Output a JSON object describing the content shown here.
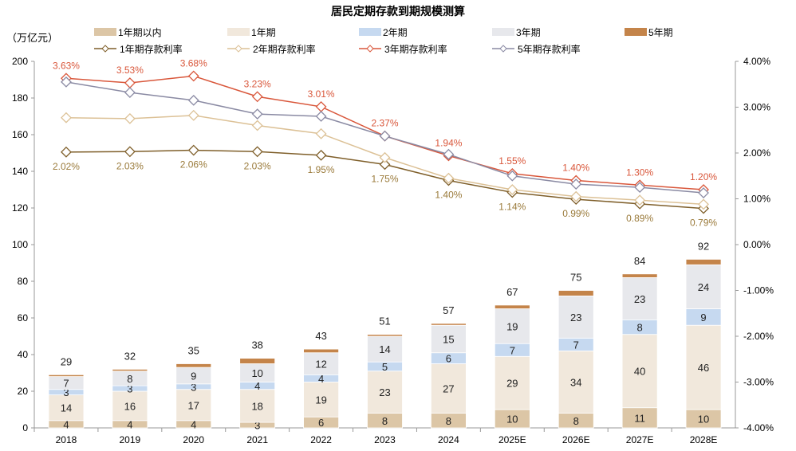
{
  "chart_data": {
    "type": "bar+line",
    "title": "居民定期存款到期规模测算",
    "ylabel_left": "（万亿元）",
    "categories": [
      "2018",
      "2019",
      "2020",
      "2021",
      "2022",
      "2023",
      "2024",
      "2025E",
      "2026E",
      "2027E",
      "2028E"
    ],
    "ylim_left": [
      0,
      200
    ],
    "yticks_left": [
      "0",
      "20",
      "40",
      "60",
      "80",
      "100",
      "120",
      "140",
      "160",
      "180",
      "200"
    ],
    "ylim_right": [
      -4,
      4
    ],
    "yticks_right": [
      "-4.00%",
      "-3.00%",
      "-2.00%",
      "-1.00%",
      "0.00%",
      "1.00%",
      "2.00%",
      "3.00%",
      "4.00%"
    ],
    "legend_position": "top",
    "bar_series": [
      {
        "name": "1年期以内",
        "color": "#dcc6a6",
        "values": [
          4,
          4,
          4,
          3,
          6,
          8,
          8,
          10,
          8,
          11,
          10
        ]
      },
      {
        "name": "1年期",
        "color": "#f1e8dc",
        "values": [
          14,
          16,
          17,
          18,
          19,
          23,
          27,
          29,
          34,
          40,
          46
        ]
      },
      {
        "name": "2年期",
        "color": "#c6d9f0",
        "values": [
          3,
          3,
          3,
          4,
          4,
          5,
          6,
          7,
          7,
          8,
          9
        ]
      },
      {
        "name": "3年期",
        "color": "#e7e8ec",
        "values": [
          7,
          8,
          9,
          10,
          12,
          14,
          15,
          19,
          23,
          23,
          24
        ]
      },
      {
        "name": "5年期",
        "color": "#c4844a",
        "values": [
          1,
          1,
          2,
          3,
          2,
          1,
          1,
          2,
          3,
          2,
          3
        ]
      }
    ],
    "totals": [
      29,
      32,
      35,
      38,
      43,
      51,
      57,
      67,
      75,
      84,
      92
    ],
    "line_series": [
      {
        "name": "1年期存款利率",
        "color": "#7f5f2a",
        "values": [
          2.02,
          2.03,
          2.06,
          2.03,
          1.95,
          1.75,
          1.4,
          1.14,
          0.99,
          0.89,
          0.79
        ],
        "labels": [
          "2.02%",
          "2.03%",
          "2.06%",
          "2.03%",
          "1.95%",
          "1.75%",
          "1.40%",
          "1.14%",
          "0.99%",
          "0.89%",
          "0.79%"
        ],
        "label_pos": "below"
      },
      {
        "name": "2年期存款利率",
        "color": "#dcc196",
        "values": [
          2.77,
          2.75,
          2.82,
          2.6,
          2.42,
          1.9,
          1.45,
          1.2,
          1.05,
          0.97,
          0.88
        ]
      },
      {
        "name": "3年期存款利率",
        "color": "#d9573b",
        "values": [
          3.63,
          3.53,
          3.68,
          3.23,
          3.01,
          2.37,
          1.94,
          1.55,
          1.4,
          1.3,
          1.2
        ],
        "labels": [
          "3.63%",
          "3.53%",
          "3.68%",
          "3.23%",
          "3.01%",
          "2.37%",
          "1.94%",
          "1.55%",
          "1.40%",
          "1.30%",
          "1.20%"
        ],
        "label_pos": "above"
      },
      {
        "name": "5年期存款利率",
        "color": "#8a8aa3",
        "values": [
          3.55,
          3.32,
          3.15,
          2.85,
          2.8,
          2.37,
          1.97,
          1.5,
          1.32,
          1.25,
          1.13
        ]
      }
    ]
  }
}
